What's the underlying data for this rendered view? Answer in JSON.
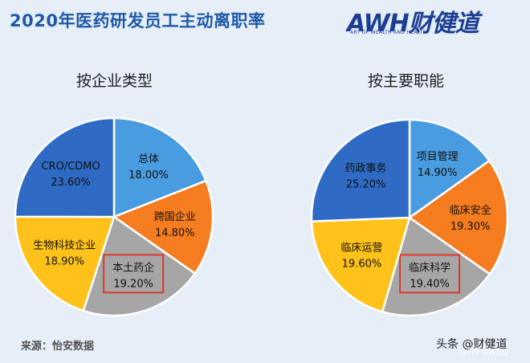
{
  "header": {
    "title": "2020年医药研发员工主动离职率",
    "logo_main": "AWH财健道",
    "logo_sub": "ART OF WEALTH AND HEALTH"
  },
  "footer": {
    "source": "来源：怡安数据",
    "watermark_line1": "头条 @财健道",
    "watermark_line2": "om-liazu"
  },
  "chart_data": [
    {
      "type": "pie",
      "title": "按企业类型",
      "slices": [
        {
          "label": "总体",
          "value": 18.0,
          "display": "18.00%",
          "color": "#4a9ce0",
          "highlighted": false
        },
        {
          "label": "跨国企业",
          "value": 14.8,
          "display": "14.80%",
          "color": "#f57c1f",
          "highlighted": false
        },
        {
          "label": "本土药企",
          "value": 19.2,
          "display": "19.20%",
          "color": "#a6a6a6",
          "highlighted": true
        },
        {
          "label": "生物科技企业",
          "value": 18.9,
          "display": "18.90%",
          "color": "#ffc21a",
          "highlighted": false
        },
        {
          "label": "CRO/CDMO",
          "value": 23.6,
          "display": "23.60%",
          "color": "#2f6ac4",
          "highlighted": false
        }
      ]
    },
    {
      "type": "pie",
      "title": "按主要职能",
      "slices": [
        {
          "label": "项目管理",
          "value": 14.9,
          "display": "14.90%",
          "color": "#4a9ce0",
          "highlighted": false
        },
        {
          "label": "临床安全",
          "value": 19.3,
          "display": "19.30%",
          "color": "#f57c1f",
          "highlighted": false
        },
        {
          "label": "临床科学",
          "value": 19.4,
          "display": "19.40%",
          "color": "#a6a6a6",
          "highlighted": true
        },
        {
          "label": "临床运营",
          "value": 19.6,
          "display": "19.60%",
          "color": "#ffc21a",
          "highlighted": false
        },
        {
          "label": "药政事务",
          "value": 25.2,
          "display": "25.20%",
          "color": "#2f6ac4",
          "highlighted": false
        }
      ]
    }
  ],
  "highlight_color": "#e0362c"
}
